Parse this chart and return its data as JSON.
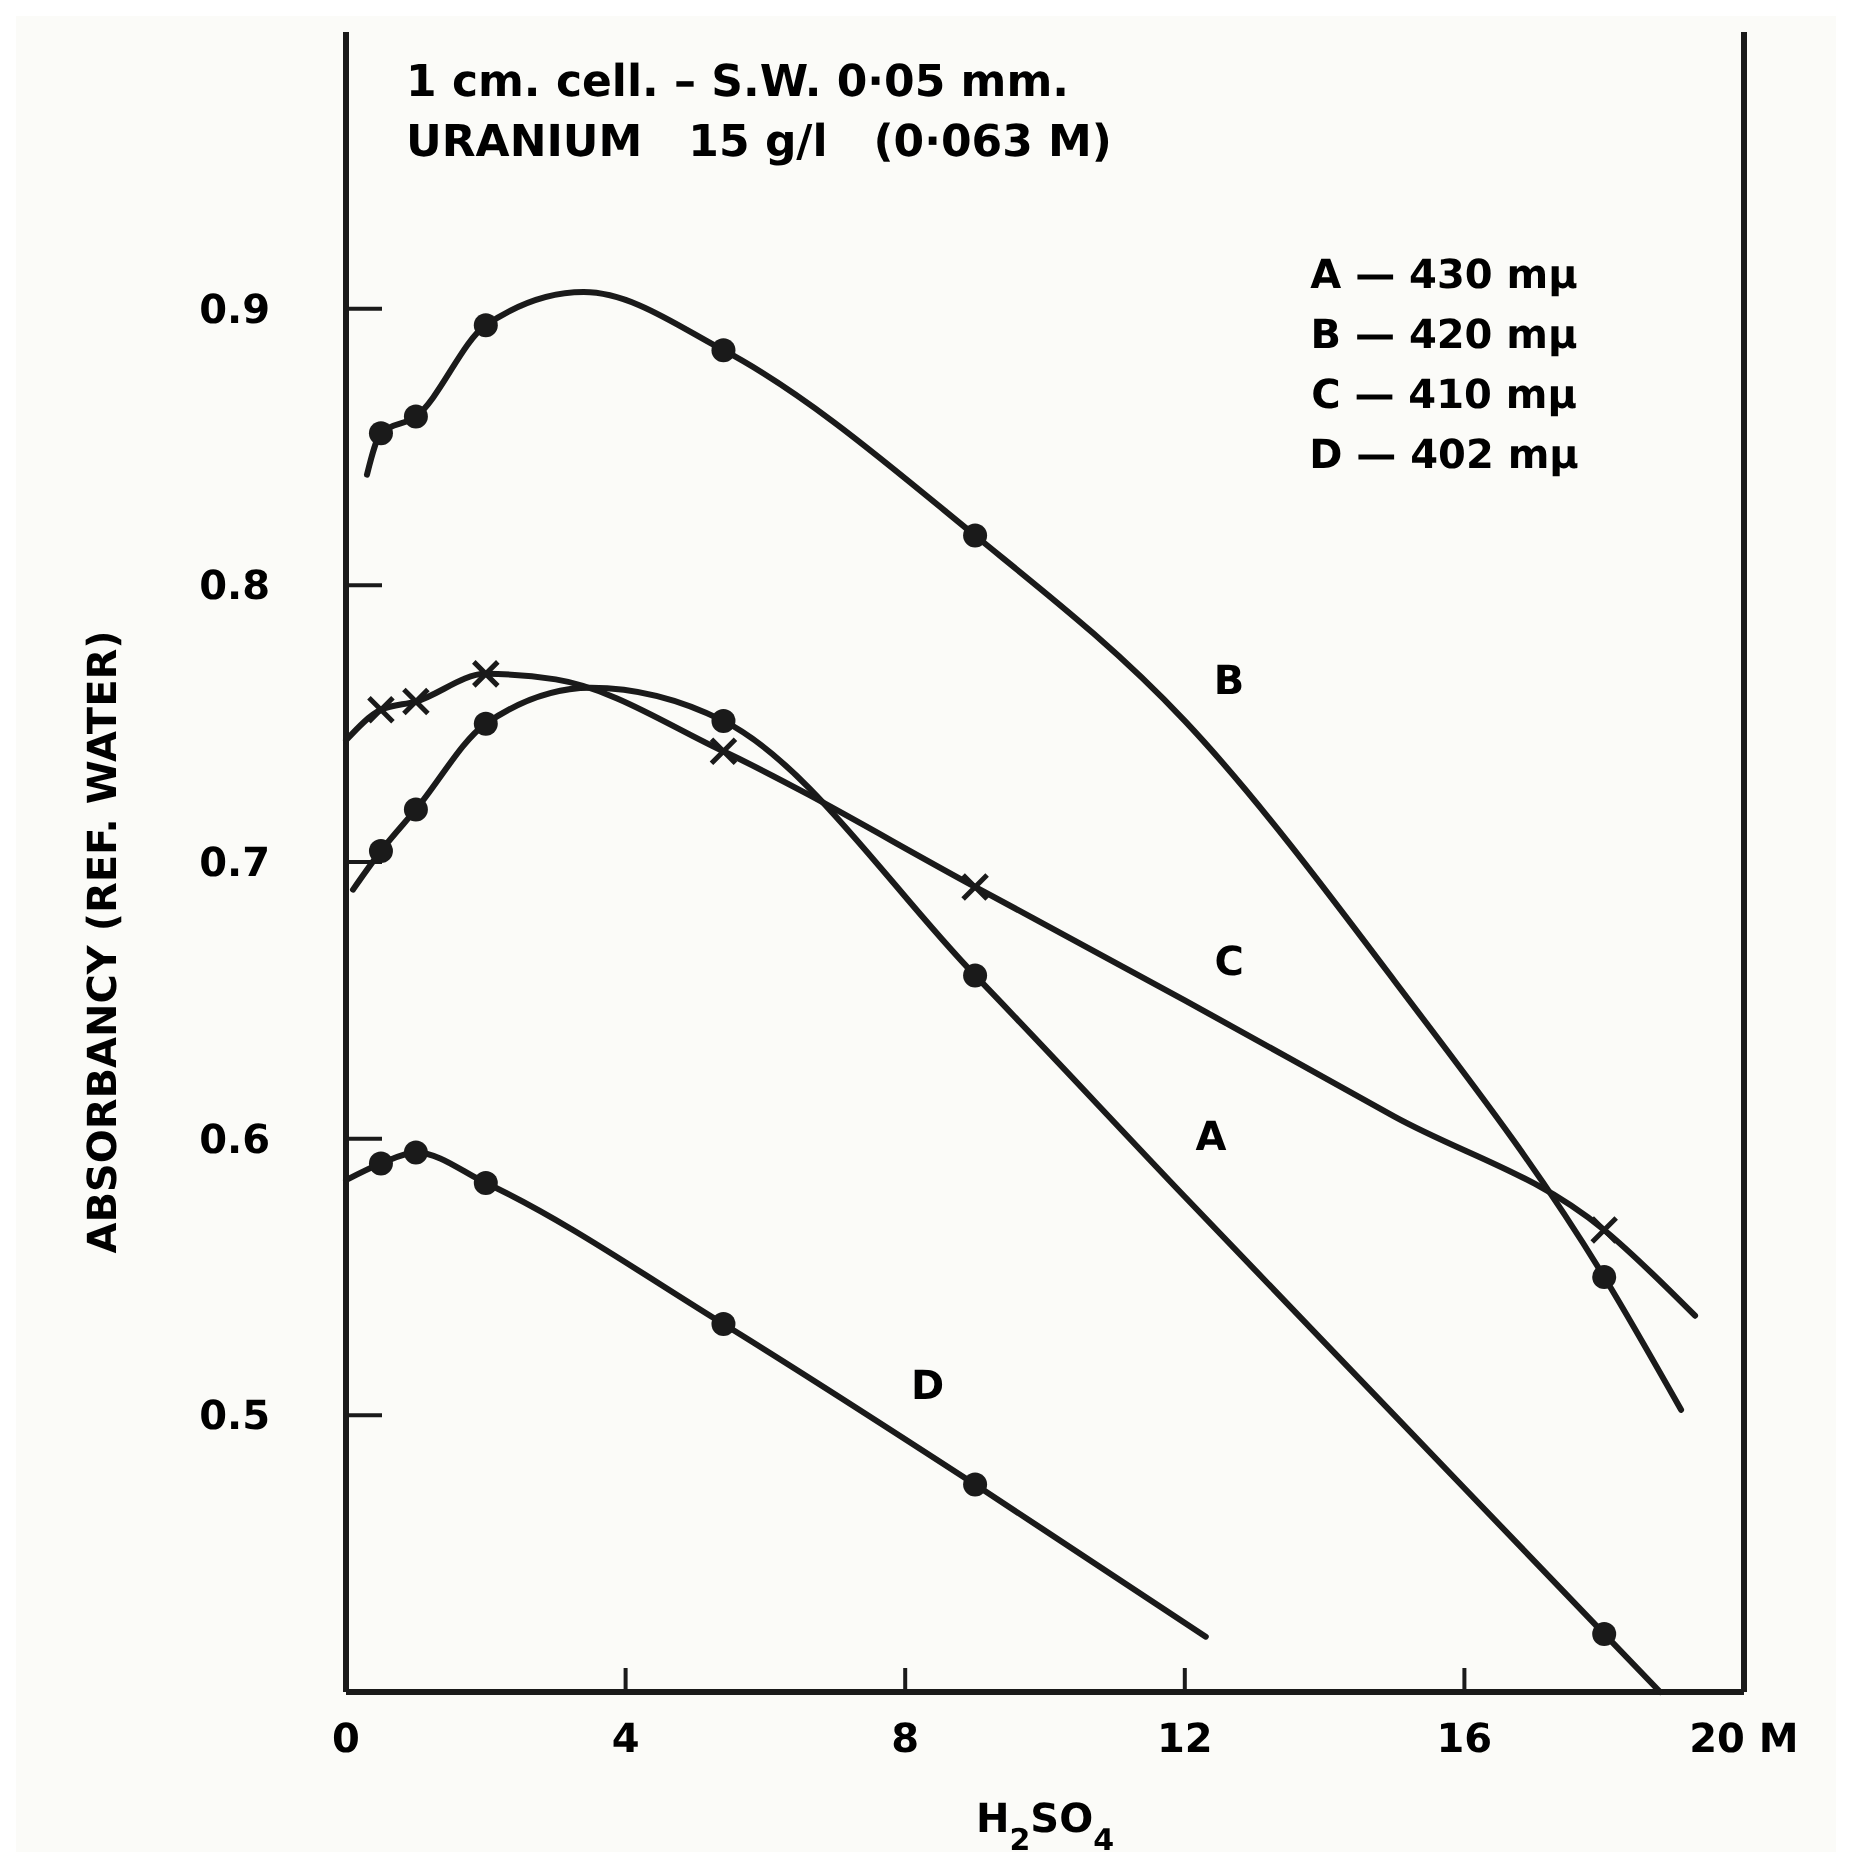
{
  "chart_data": {
    "type": "line",
    "title": "1 cm. cell. – S.W. 0·05 mm.",
    "subtitle": "URANIUM   15 g/l   (0·063 M)",
    "xlabel": "H$_{2}$SO$_{4}$",
    "ylabel": "ABSORBANCY   (REF. WATER)",
    "xlim": [
      0,
      20
    ],
    "xticks": [
      0,
      4,
      8,
      12,
      16,
      {
        "value": 20,
        "label": "20 M"
      }
    ],
    "ylim": [
      0.4,
      1.0
    ],
    "yticks": [
      0.5,
      0.6,
      0.7,
      0.8,
      0.9
    ],
    "series": [
      {
        "name": "A",
        "color": "#1a1a1a",
        "marker": "none",
        "x": [
          0.1,
          0.5,
          1,
          2,
          3.5,
          5.4,
          9,
          12,
          15,
          18,
          18.8
        ],
        "values": [
          0.69,
          0.704,
          0.719,
          0.75,
          0.763,
          0.751,
          0.659,
          0.579,
          0.5,
          0.421,
          0.4
        ]
      },
      {
        "name": "B",
        "color": "#1a1a1a",
        "marker": "none",
        "x": [
          0.3,
          0.5,
          1,
          2,
          3.4,
          5.4,
          9,
          12,
          15,
          18,
          19.1
        ],
        "values": [
          0.84,
          0.855,
          0.861,
          0.894,
          0.906,
          0.885,
          0.818,
          0.751,
          0.657,
          0.55,
          0.502
        ]
      },
      {
        "name": "C",
        "color": "#1a1a1a",
        "marker": "none",
        "x": [
          0,
          0.5,
          1,
          2,
          3,
          5.4,
          9,
          12,
          15,
          18,
          19.3
        ],
        "values": [
          0.744,
          0.755,
          0.758,
          0.768,
          0.766,
          0.74,
          0.691,
          0.65,
          0.608,
          0.567,
          0.536
        ]
      },
      {
        "name": "D",
        "color": "#1a1a1a",
        "marker": "none",
        "x": [
          0,
          0.5,
          1,
          2,
          5.4,
          9,
          12.3
        ],
        "values": [
          0.585,
          0.591,
          0.595,
          0.584,
          0.533,
          0.475,
          0.42
        ]
      },
      {
        "type": "scatter",
        "color": "#1a1a1a",
        "marker": "circle",
        "x": [
          0.5,
          1,
          2,
          5.4,
          9,
          18
        ],
        "values": [
          0.704,
          0.719,
          0.75,
          0.751,
          0.659,
          0.421
        ]
      },
      {
        "type": "scatter",
        "color": "#1a1a1a",
        "marker": "circle",
        "x": [
          0.5,
          1,
          2,
          5.4,
          9,
          18
        ],
        "values": [
          0.855,
          0.861,
          0.894,
          0.885,
          0.818,
          0.55
        ]
      },
      {
        "type": "scatter",
        "color": "#1a1a1a",
        "marker": "cross",
        "x": [
          0.5,
          1,
          2,
          5.4,
          9,
          18
        ],
        "values": [
          0.755,
          0.758,
          0.768,
          0.74,
          0.691,
          0.567
        ]
      },
      {
        "type": "scatter",
        "color": "#1a1a1a",
        "marker": "circle",
        "x": [
          0.5,
          1,
          2,
          5.4,
          9
        ],
        "values": [
          0.591,
          0.595,
          0.584,
          0.533,
          0.475
        ]
      }
    ],
    "annotations": [
      "A — 430 mμ",
      "B — 420 mμ",
      "C — 410 mμ",
      "D — 402 mμ"
    ]
  }
}
